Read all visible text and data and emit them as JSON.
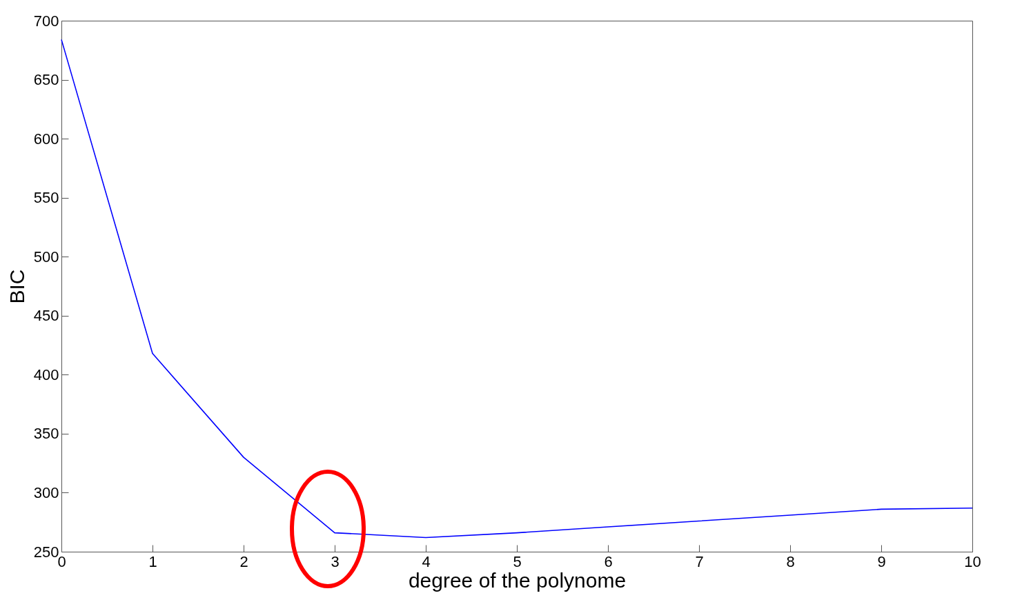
{
  "chart_data": {
    "type": "line",
    "xlabel": "degree of the polynome",
    "ylabel": "BIC",
    "x": [
      0,
      1,
      2,
      3,
      4,
      5,
      6,
      7,
      8,
      9,
      10
    ],
    "series": [
      {
        "color": "#0000ff",
        "values": [
          684,
          418,
          330,
          266,
          262,
          266,
          271,
          276,
          281,
          286,
          287
        ]
      }
    ],
    "xlim": [
      0,
      10
    ],
    "xticks": [
      0,
      1,
      2,
      3,
      4,
      5,
      6,
      7,
      8,
      9,
      10
    ],
    "ylim": [
      250,
      700
    ],
    "yticks": [
      250,
      300,
      350,
      400,
      450,
      500,
      550,
      600,
      650,
      700
    ],
    "grid": false,
    "line_style": "solid"
  }
}
